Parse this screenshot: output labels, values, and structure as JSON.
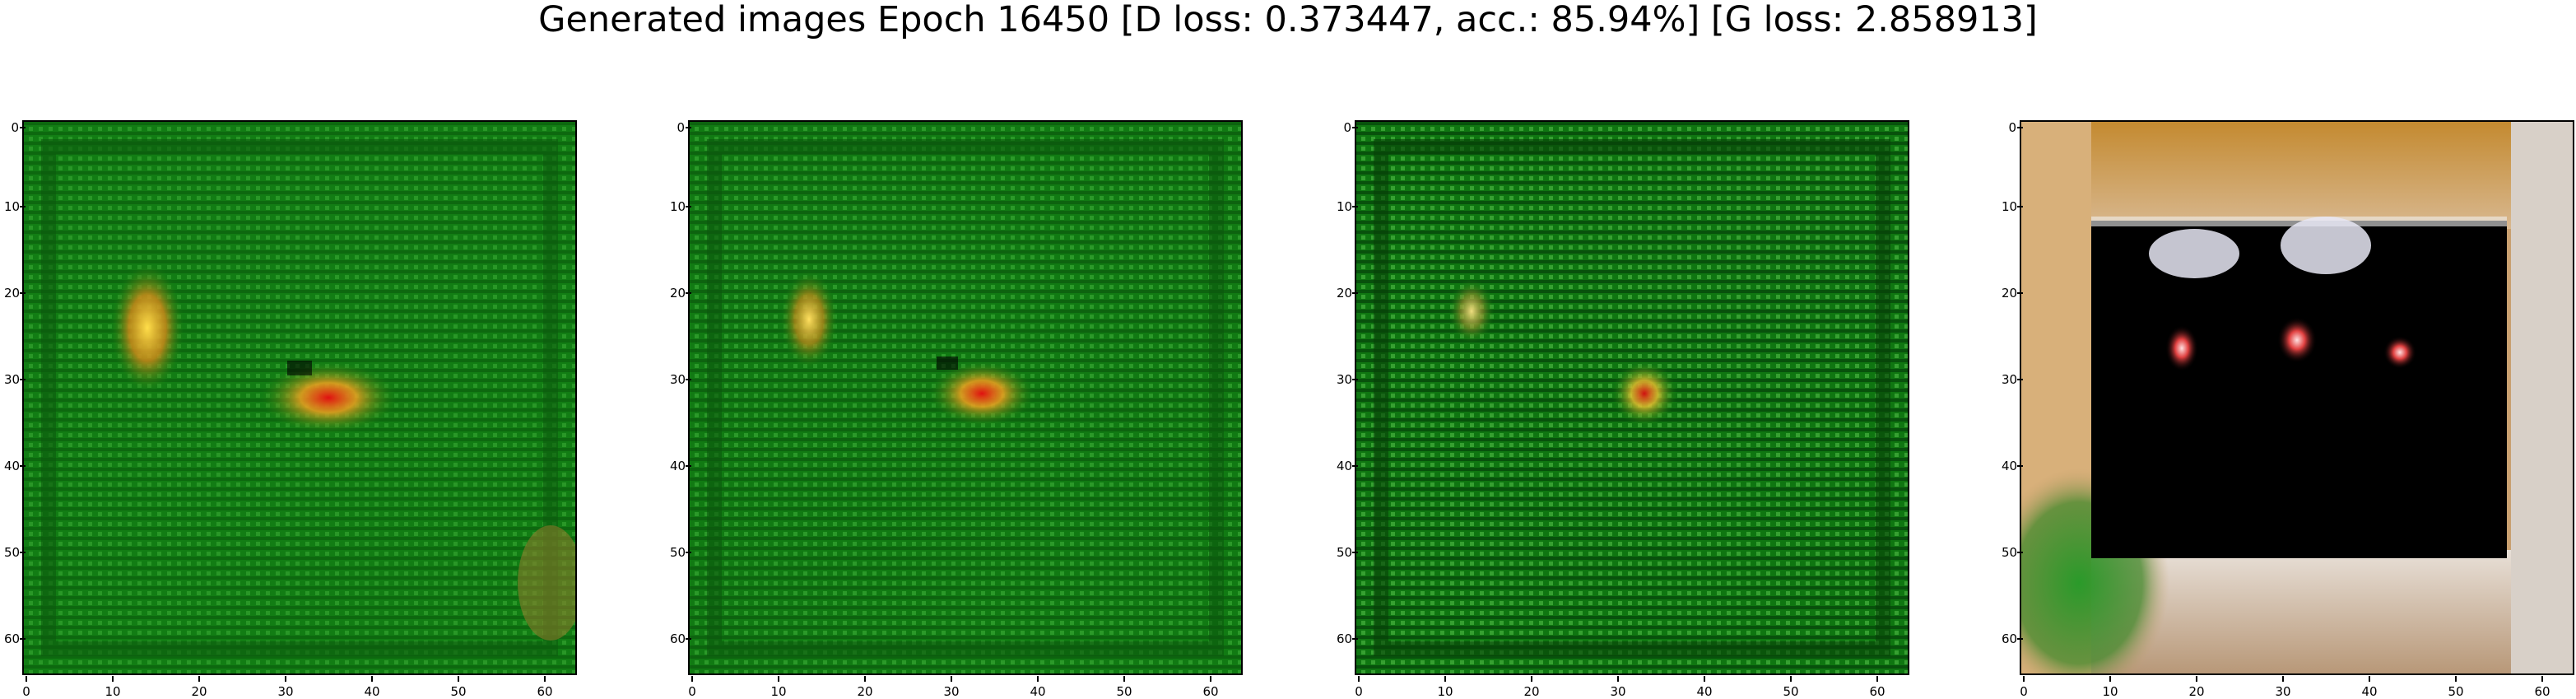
{
  "figure": {
    "title": "Generated images Epoch 16450 [D loss: 0.373447, acc.: 85.94%] [G loss: 2.858913]"
  },
  "axes": {
    "x_ticks": [
      "0",
      "10",
      "20",
      "30",
      "40",
      "50",
      "60"
    ],
    "y_ticks": [
      "0",
      "10",
      "20",
      "30",
      "40",
      "50",
      "60"
    ],
    "x_range": [
      -0.5,
      63.5
    ],
    "y_range": [
      -0.5,
      63.5
    ]
  },
  "panels": [
    {
      "id": "sample-1",
      "scene": "green-texture",
      "base_color": "#127d14",
      "blobs": 2
    },
    {
      "id": "sample-2",
      "scene": "green-texture",
      "base_color": "#117a13",
      "blobs": 2
    },
    {
      "id": "sample-3",
      "scene": "green-texture",
      "base_color": "#0f7611",
      "blobs": 2
    },
    {
      "id": "sample-4",
      "scene": "framed-dark",
      "base_color": "#000000",
      "frame_color": "#c9a070"
    }
  ]
}
